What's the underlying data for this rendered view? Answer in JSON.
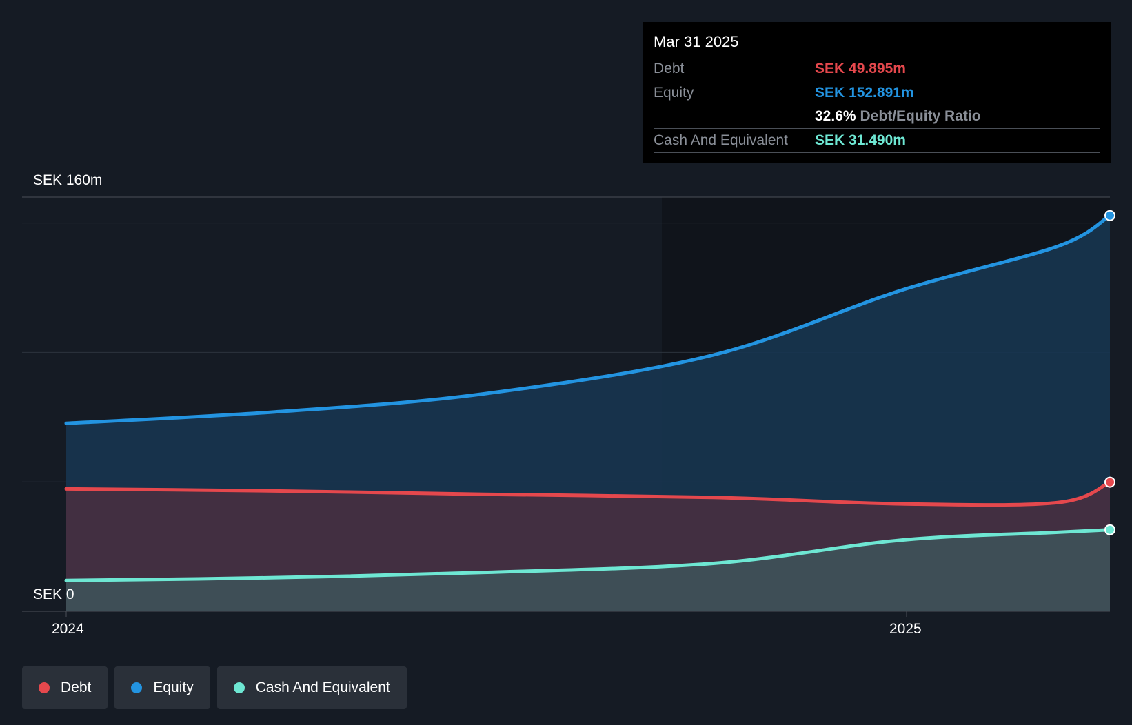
{
  "chart_data": {
    "type": "area",
    "currency_axis_labels": {
      "top": "SEK 160m",
      "bottom": "SEK 0"
    },
    "x_ticks": [
      "2024",
      "2025"
    ],
    "ylim": [
      0,
      160
    ],
    "gridlines": [
      0,
      50,
      100,
      150
    ],
    "series": [
      {
        "name": "Debt",
        "color": "#e5484d",
        "points": [
          {
            "t": 0.0,
            "v": 47.3
          },
          {
            "t": 0.2,
            "v": 46.5
          },
          {
            "t": 0.4,
            "v": 45.2
          },
          {
            "t": 0.62,
            "v": 44.0
          },
          {
            "t": 0.8,
            "v": 41.5
          },
          {
            "t": 0.95,
            "v": 42.0
          },
          {
            "t": 1.0,
            "v": 49.895
          }
        ]
      },
      {
        "name": "Equity",
        "color": "#2394e1",
        "points": [
          {
            "t": 0.0,
            "v": 72.6
          },
          {
            "t": 0.2,
            "v": 77.0
          },
          {
            "t": 0.4,
            "v": 84.0
          },
          {
            "t": 0.62,
            "v": 99.0
          },
          {
            "t": 0.8,
            "v": 124.0
          },
          {
            "t": 0.95,
            "v": 141.0
          },
          {
            "t": 1.0,
            "v": 152.891
          }
        ]
      },
      {
        "name": "Cash And Equivalent",
        "color": "#6ee7d3",
        "points": [
          {
            "t": 0.0,
            "v": 11.9
          },
          {
            "t": 0.2,
            "v": 13.0
          },
          {
            "t": 0.4,
            "v": 15.0
          },
          {
            "t": 0.62,
            "v": 18.5
          },
          {
            "t": 0.8,
            "v": 27.5
          },
          {
            "t": 0.95,
            "v": 30.5
          },
          {
            "t": 1.0,
            "v": 31.49
          }
        ]
      }
    ]
  },
  "tooltip": {
    "date": "Mar 31 2025",
    "debt_label": "Debt",
    "debt_value": "SEK 49.895m",
    "equity_label": "Equity",
    "equity_value": "SEK 152.891m",
    "ratio_value": "32.6%",
    "ratio_label": "Debt/Equity Ratio",
    "cash_label": "Cash And Equivalent",
    "cash_value": "SEK 31.490m"
  },
  "legend": [
    {
      "label": "Debt",
      "color": "#e5484d"
    },
    {
      "label": "Equity",
      "color": "#2394e1"
    },
    {
      "label": "Cash And Equivalent",
      "color": "#6ee7d3"
    }
  ]
}
